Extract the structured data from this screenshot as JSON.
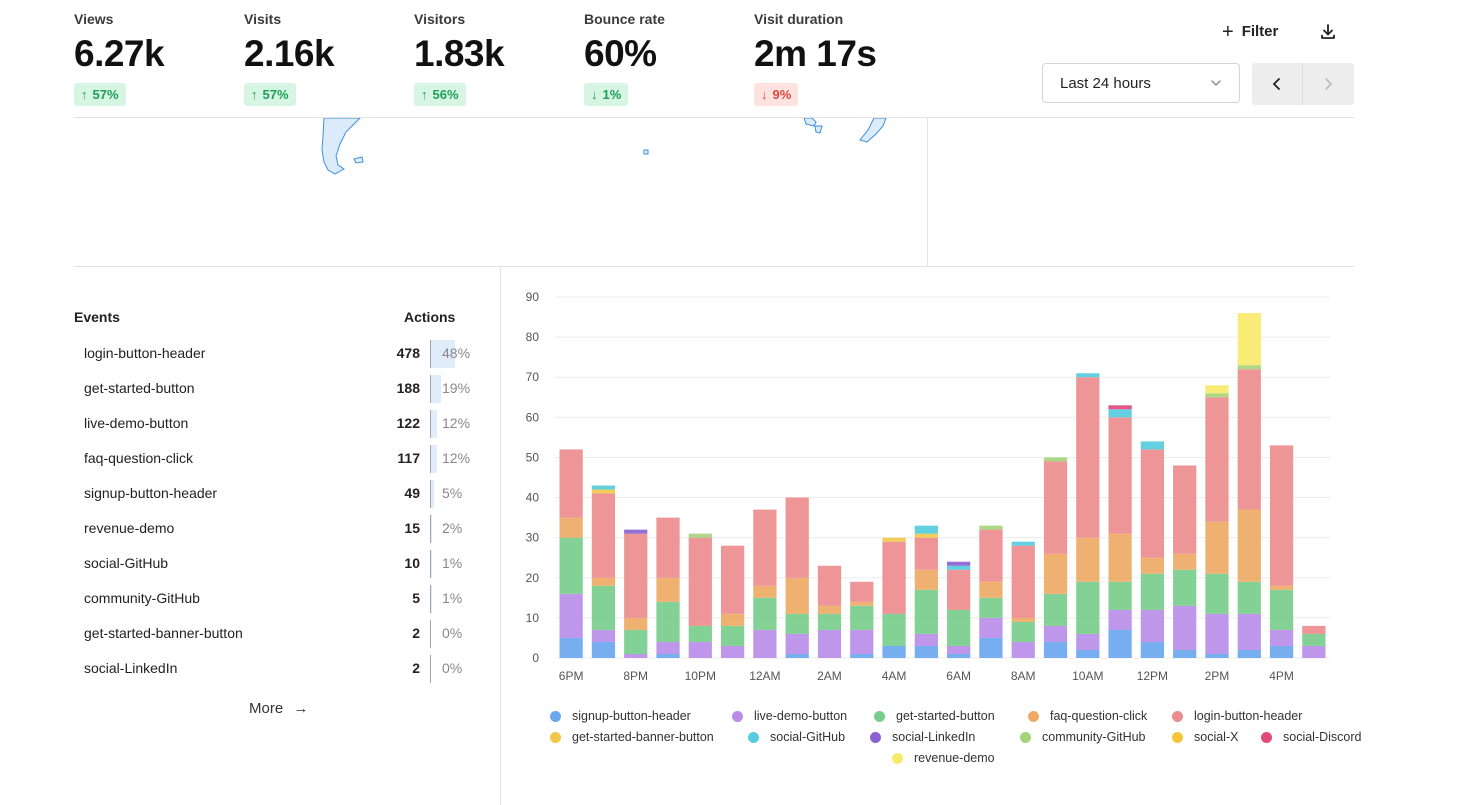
{
  "stats": [
    {
      "label": "Views",
      "value": "6.27k",
      "change": "57%",
      "direction": "up"
    },
    {
      "label": "Visits",
      "value": "2.16k",
      "change": "57%",
      "direction": "up"
    },
    {
      "label": "Visitors",
      "value": "1.83k",
      "change": "56%",
      "direction": "up"
    },
    {
      "label": "Bounce rate",
      "value": "60%",
      "change": "1%",
      "direction": "down"
    },
    {
      "label": "Visit duration",
      "value": "2m 17s",
      "change": "9%",
      "direction": "down"
    }
  ],
  "toolbar": {
    "filter_label": "Filter",
    "date_range": "Last 24 hours"
  },
  "events": {
    "header_name": "Events",
    "header_actions": "Actions",
    "rows": [
      {
        "name": "login-button-header",
        "count": "478",
        "pct": "48%",
        "fraction": 0.48
      },
      {
        "name": "get-started-button",
        "count": "188",
        "pct": "19%",
        "fraction": 0.19
      },
      {
        "name": "live-demo-button",
        "count": "122",
        "pct": "12%",
        "fraction": 0.12
      },
      {
        "name": "faq-question-click",
        "count": "117",
        "pct": "12%",
        "fraction": 0.12
      },
      {
        "name": "signup-button-header",
        "count": "49",
        "pct": "5%",
        "fraction": 0.05
      },
      {
        "name": "revenue-demo",
        "count": "15",
        "pct": "2%",
        "fraction": 0.02
      },
      {
        "name": "social-GitHub",
        "count": "10",
        "pct": "1%",
        "fraction": 0.01
      },
      {
        "name": "community-GitHub",
        "count": "5",
        "pct": "1%",
        "fraction": 0.01
      },
      {
        "name": "get-started-banner-button",
        "count": "2",
        "pct": "0%",
        "fraction": 0.0
      },
      {
        "name": "social-LinkedIn",
        "count": "2",
        "pct": "0%",
        "fraction": 0.0
      }
    ],
    "more_label": "More"
  },
  "colors": {
    "up_text": "#1e9e57",
    "up_bg": "#d7f5e3",
    "down_text": "#e0473a",
    "down_bg": "#fde2df"
  },
  "chart_data": {
    "type": "bar",
    "stacked": true,
    "ylim": [
      0,
      90
    ],
    "yticks": [
      "0",
      "10",
      "20",
      "30",
      "40",
      "50",
      "60",
      "70",
      "80",
      "90"
    ],
    "grid": true,
    "legend_position": "bottom",
    "x_tick_labels": [
      "6PM",
      "8PM",
      "10PM",
      "12AM",
      "2AM",
      "4AM",
      "6AM",
      "8AM",
      "10AM",
      "12PM",
      "2PM",
      "4PM"
    ],
    "x_tick_every": 2,
    "categories": [
      "6PM",
      "7PM",
      "8PM",
      "9PM",
      "10PM",
      "11PM",
      "12AM",
      "1AM",
      "2AM",
      "3AM",
      "4AM",
      "5AM",
      "6AM",
      "7AM",
      "8AM",
      "9AM",
      "10AM",
      "11AM",
      "12PM",
      "1PM",
      "2PM",
      "3PM",
      "4PM",
      "5PM"
    ],
    "series": [
      {
        "name": "signup-button-header",
        "color": "#6aa7ee",
        "values": [
          5,
          4,
          0,
          1,
          0,
          0,
          0,
          1,
          0,
          1,
          3,
          3,
          1,
          5,
          0,
          4,
          2,
          7,
          4,
          2,
          1,
          2,
          3,
          0
        ]
      },
      {
        "name": "live-demo-button",
        "color": "#b98ee8",
        "values": [
          11,
          3,
          1,
          3,
          4,
          3,
          7,
          5,
          7,
          6,
          0,
          3,
          2,
          5,
          4,
          4,
          4,
          5,
          8,
          11,
          10,
          9,
          4,
          3
        ]
      },
      {
        "name": "get-started-button",
        "color": "#78cd8c",
        "values": [
          14,
          11,
          6,
          10,
          4,
          5,
          8,
          5,
          4,
          6,
          8,
          11,
          9,
          5,
          5,
          8,
          13,
          7,
          9,
          9,
          10,
          8,
          10,
          3
        ]
      },
      {
        "name": "faq-question-click",
        "color": "#eeaa65",
        "values": [
          5,
          2,
          3,
          6,
          0,
          3,
          3,
          9,
          2,
          1,
          0,
          5,
          0,
          4,
          1,
          10,
          11,
          12,
          4,
          4,
          13,
          18,
          1,
          0
        ]
      },
      {
        "name": "login-button-header",
        "color": "#ec8c8e",
        "values": [
          17,
          21,
          21,
          15,
          22,
          17,
          19,
          20,
          10,
          5,
          18,
          8,
          10,
          13,
          18,
          23,
          40,
          29,
          27,
          22,
          31,
          35,
          35,
          2
        ]
      },
      {
        "name": "get-started-banner-button",
        "color": "#f2c84b",
        "values": [
          0,
          1,
          0,
          0,
          0,
          0,
          0,
          0,
          0,
          0,
          1,
          1,
          0,
          0,
          0,
          0,
          0,
          0,
          0,
          0,
          0,
          0,
          0,
          0
        ]
      },
      {
        "name": "social-GitHub",
        "color": "#56ccde",
        "values": [
          0,
          1,
          0,
          0,
          0,
          0,
          0,
          0,
          0,
          0,
          0,
          2,
          1,
          0,
          1,
          0,
          1,
          2,
          2,
          0,
          0,
          0,
          0,
          0
        ]
      },
      {
        "name": "social-LinkedIn",
        "color": "#8a62cf",
        "values": [
          0,
          0,
          1,
          0,
          0,
          0,
          0,
          0,
          0,
          0,
          0,
          0,
          1,
          0,
          0,
          0,
          0,
          0,
          0,
          0,
          0,
          0,
          0,
          0
        ]
      },
      {
        "name": "community-GitHub",
        "color": "#a6d47a",
        "values": [
          0,
          0,
          0,
          0,
          1,
          0,
          0,
          0,
          0,
          0,
          0,
          0,
          0,
          1,
          0,
          1,
          0,
          0,
          0,
          0,
          1,
          1,
          0,
          0
        ]
      },
      {
        "name": "social-X",
        "color": "#f3c63c",
        "values": [
          0,
          0,
          0,
          0,
          0,
          0,
          0,
          0,
          0,
          0,
          0,
          0,
          0,
          0,
          0,
          0,
          0,
          0,
          0,
          0,
          0,
          0,
          0,
          0
        ]
      },
      {
        "name": "social-Discord",
        "color": "#e04a7a",
        "values": [
          0,
          0,
          0,
          0,
          0,
          0,
          0,
          0,
          0,
          0,
          0,
          0,
          0,
          0,
          0,
          0,
          0,
          1,
          0,
          0,
          0,
          0,
          0,
          0
        ]
      },
      {
        "name": "revenue-demo",
        "color": "#f7ea6a",
        "values": [
          0,
          0,
          0,
          0,
          0,
          0,
          0,
          0,
          0,
          0,
          0,
          0,
          0,
          0,
          0,
          0,
          0,
          0,
          0,
          0,
          2,
          13,
          0,
          0
        ]
      }
    ]
  }
}
